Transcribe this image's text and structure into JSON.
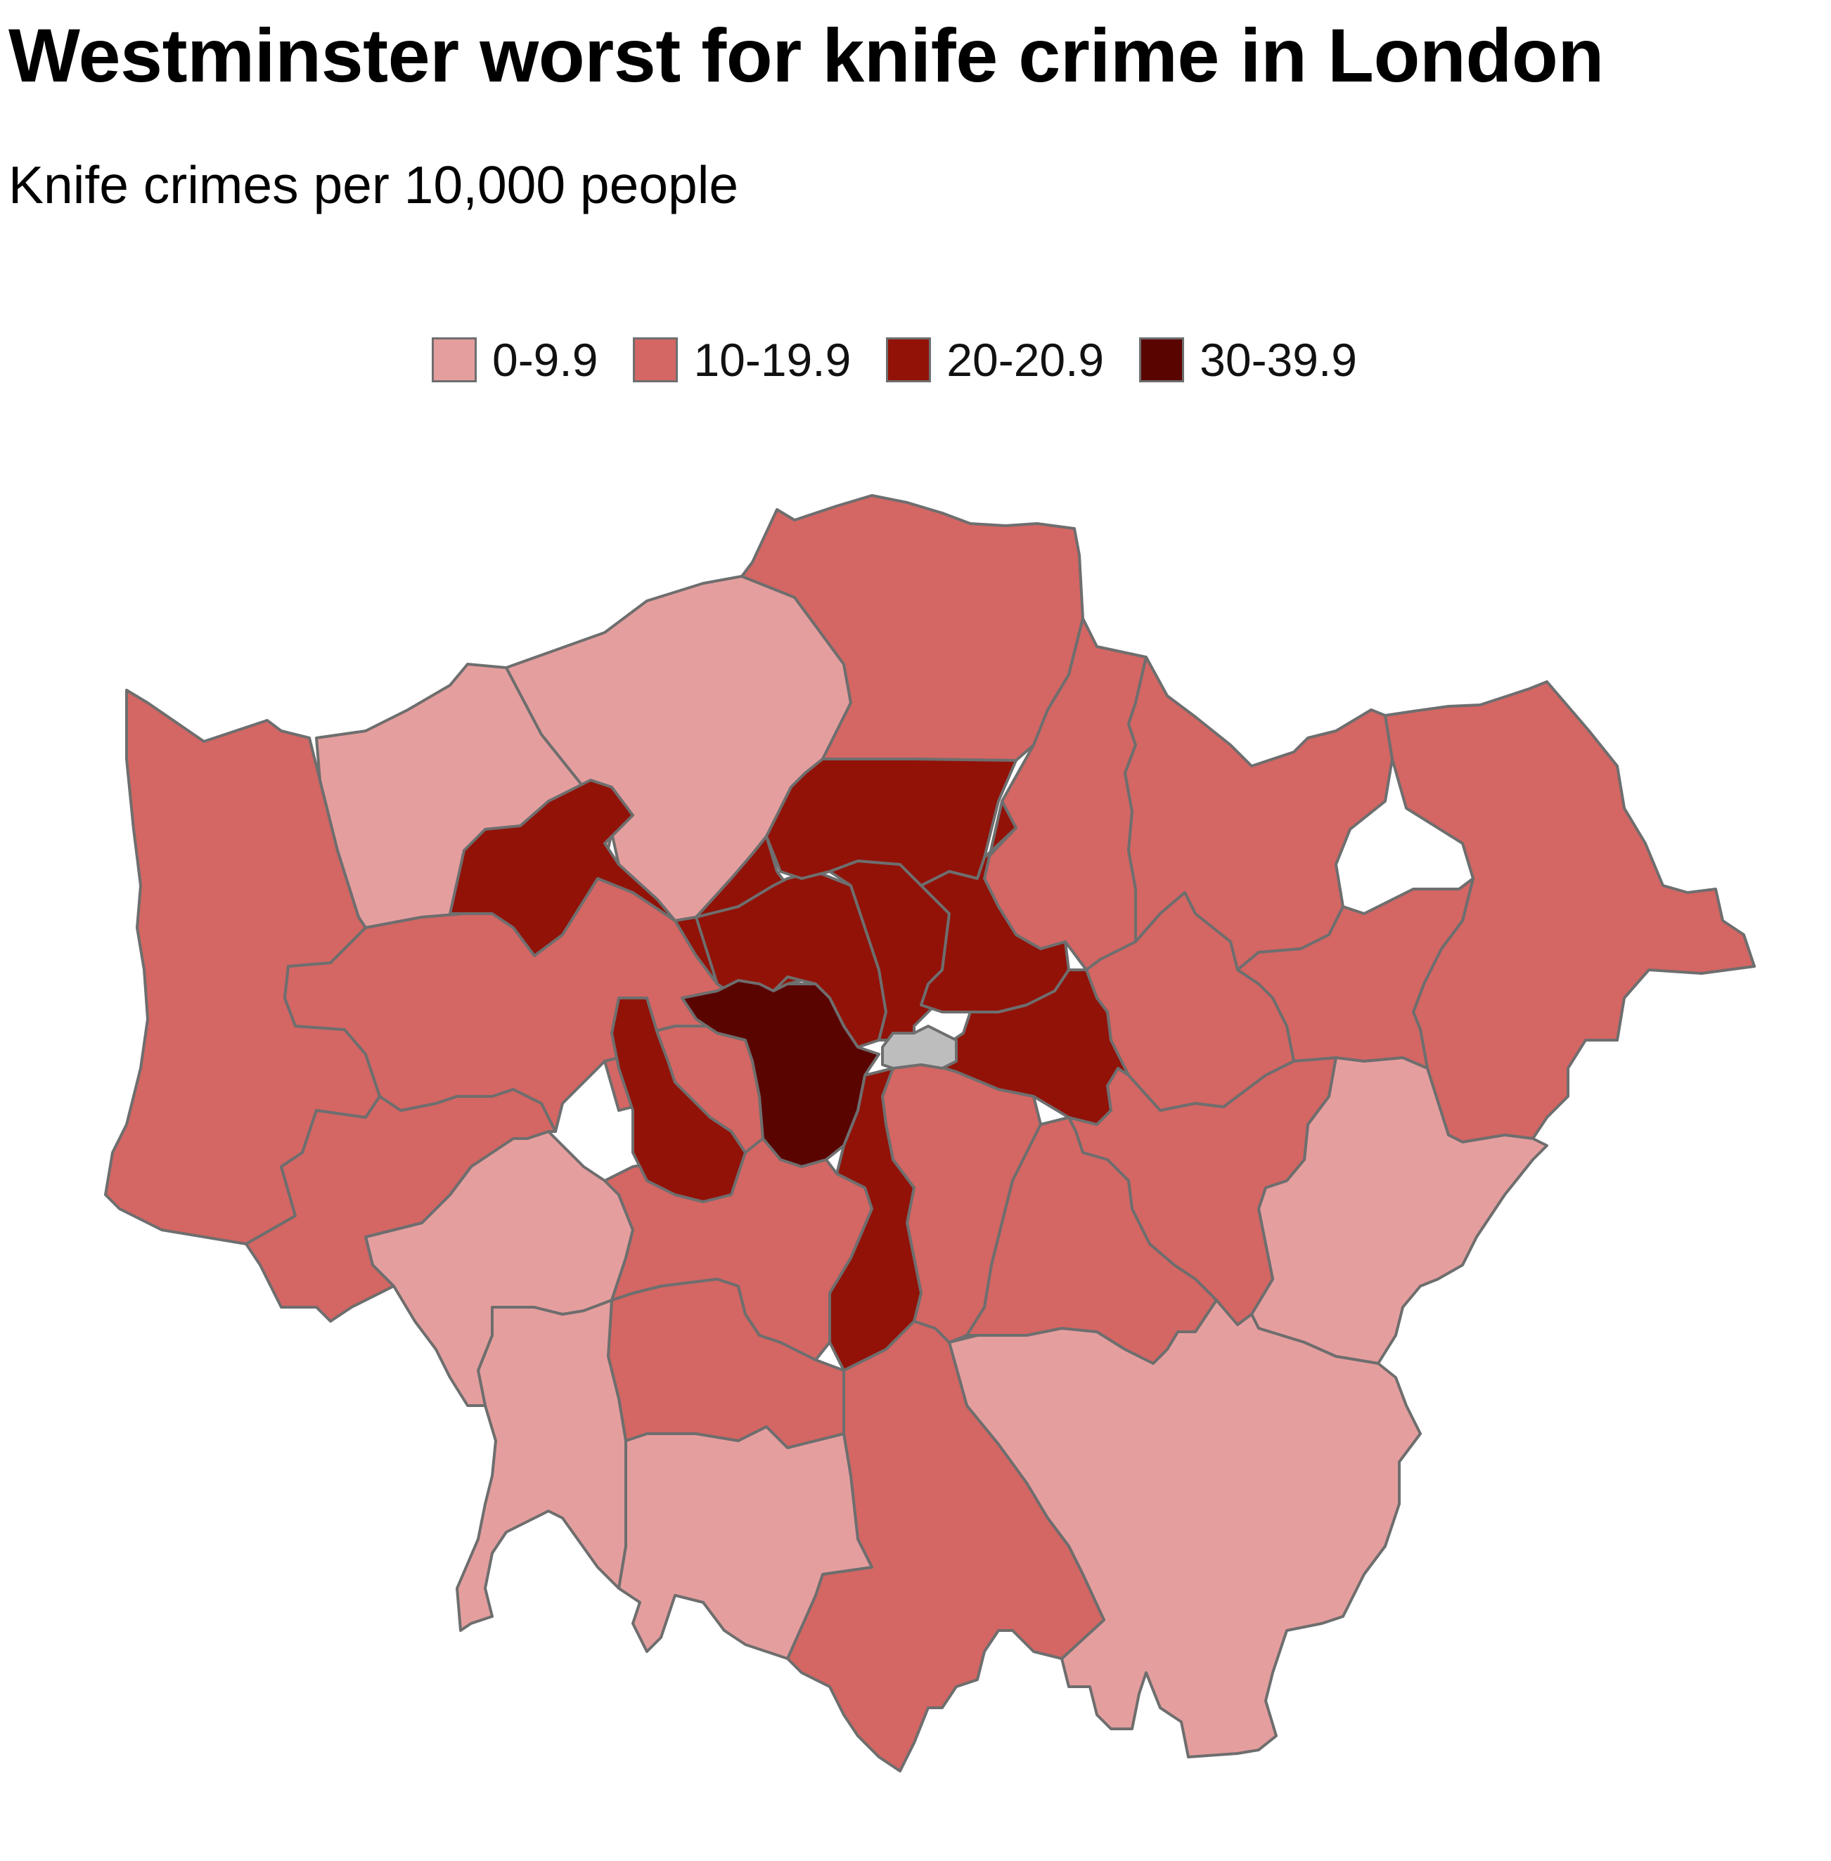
{
  "title": "Westminster worst for knife crime in London",
  "subtitle": "Knife crimes per 10,000 people",
  "legend": [
    {
      "label": "0-9.9",
      "color": "#e59e9e"
    },
    {
      "label": "10-19.9",
      "color": "#d46663"
    },
    {
      "label": "20-20.9",
      "color": "#921208"
    },
    {
      "label": "30-39.9",
      "color": "#5a0400"
    }
  ],
  "colors": {
    "no_data": "#bdbdbd",
    "border": "#6e6e6e"
  },
  "boroughs": [
    {
      "id": "westminster",
      "band": 3
    },
    {
      "id": "city-of-london",
      "band": -1
    },
    {
      "id": "camden",
      "band": 2
    },
    {
      "id": "islington",
      "band": 2
    },
    {
      "id": "hackney",
      "band": 2
    },
    {
      "id": "haringey",
      "band": 2
    },
    {
      "id": "tower-hamlets",
      "band": 2
    },
    {
      "id": "lambeth",
      "band": 2
    },
    {
      "id": "kensington-and-chelsea",
      "band": 2
    },
    {
      "id": "brent",
      "band": 2
    },
    {
      "id": "barnet",
      "band": 0
    },
    {
      "id": "harrow",
      "band": 0
    },
    {
      "id": "richmond-upon-thames",
      "band": 0
    },
    {
      "id": "kingston-upon-thames",
      "band": 0
    },
    {
      "id": "sutton",
      "band": 0
    },
    {
      "id": "bromley",
      "band": 0
    },
    {
      "id": "bexley",
      "band": 0
    },
    {
      "id": "enfield",
      "band": 1
    },
    {
      "id": "waltham-forest",
      "band": 1
    },
    {
      "id": "redbridge",
      "band": 1
    },
    {
      "id": "havering",
      "band": 1
    },
    {
      "id": "barking-and-dagenham",
      "band": 1
    },
    {
      "id": "newham",
      "band": 1
    },
    {
      "id": "greenwich",
      "band": 1
    },
    {
      "id": "lewisham",
      "band": 1
    },
    {
      "id": "southwark",
      "band": 1
    },
    {
      "id": "wandsworth",
      "band": 1
    },
    {
      "id": "merton",
      "band": 1
    },
    {
      "id": "croydon",
      "band": 1
    },
    {
      "id": "hammersmith-and-fulham",
      "band": 1
    },
    {
      "id": "ealing",
      "band": 1
    },
    {
      "id": "hounslow",
      "band": 1
    },
    {
      "id": "hillingdon",
      "band": 1
    }
  ]
}
